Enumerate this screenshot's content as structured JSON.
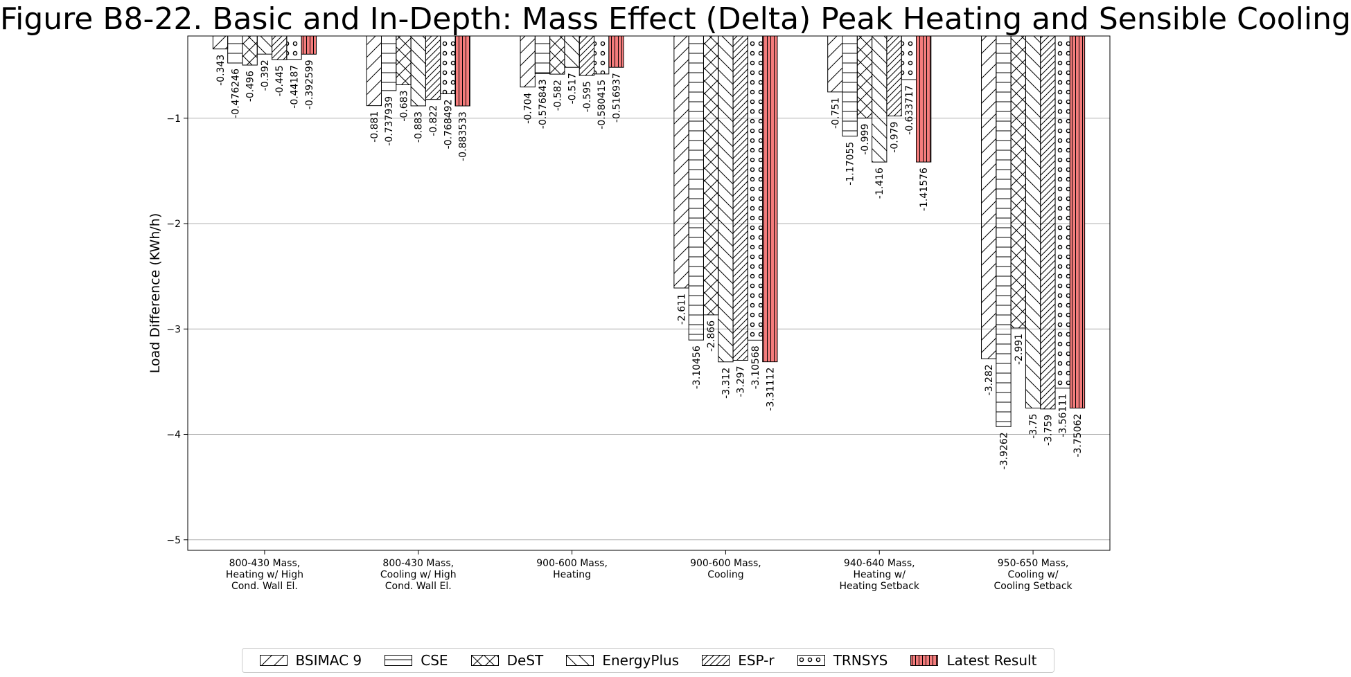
{
  "chart_data": {
    "type": "bar",
    "title": "Figure B8-22. Basic and In-Depth: Mass Effect (Delta) Peak Heating and Sensible Cooling",
    "ylabel": "Load Difference (KWh/h)",
    "xlabel": "",
    "ylim": [
      -5.1,
      -0.22
    ],
    "yticks": [
      -1,
      -2,
      -3,
      -4,
      -5
    ],
    "ytick_labels": [
      "−1",
      "−2",
      "−3",
      "−4",
      "−5"
    ],
    "grid": "horizontal",
    "legend_position": "bottom",
    "categories": [
      [
        "800-430 Mass,",
        "Heating w/ High",
        "Cond. Wall El."
      ],
      [
        "800-430 Mass,",
        "Cooling w/ High",
        "Cond. Wall El."
      ],
      [
        "900-600 Mass,",
        "Heating"
      ],
      [
        "900-600 Mass,",
        "Cooling"
      ],
      [
        "940-640 Mass,",
        "Heating w/",
        "Heating Setback"
      ],
      [
        "950-650 Mass,",
        "Cooling w/",
        "Cooling Setback"
      ]
    ],
    "series": [
      {
        "name": "BSIMAC 9",
        "pattern": "slash",
        "color": "#ffffff",
        "values": [
          -0.343,
          -0.881,
          -0.704,
          -2.611,
          -0.751,
          -3.282
        ],
        "labels": [
          "-0.343",
          "-0.881",
          "-0.704",
          "-2.611",
          "-0.751",
          "-3.282"
        ]
      },
      {
        "name": "CSE",
        "pattern": "horizontal",
        "color": "#ffffff",
        "values": [
          -0.476246,
          -0.737939,
          -0.576843,
          -3.10456,
          -1.17055,
          -3.9262
        ],
        "labels": [
          "-0.476246",
          "-0.737939",
          "-0.576843",
          "-3.10456",
          "-1.17055",
          "-3.9262"
        ]
      },
      {
        "name": "DeST",
        "pattern": "cross",
        "color": "#ffffff",
        "values": [
          -0.496,
          -0.683,
          -0.582,
          -2.866,
          -0.999,
          -2.991
        ],
        "labels": [
          "-0.496",
          "-0.683",
          "-0.582",
          "-2.866",
          "-0.999",
          "-2.991"
        ]
      },
      {
        "name": "EnergyPlus",
        "pattern": "backslash",
        "color": "#ffffff",
        "values": [
          -0.392,
          -0.883,
          -0.517,
          -3.312,
          -1.416,
          -3.75
        ],
        "labels": [
          "-0.392",
          "-0.883",
          "-0.517",
          "-3.312",
          "-1.416",
          "-3.75"
        ]
      },
      {
        "name": "ESP-r",
        "pattern": "dense-slash",
        "color": "#ffffff",
        "values": [
          -0.445,
          -0.822,
          -0.595,
          -3.297,
          -0.979,
          -3.759
        ],
        "labels": [
          "-0.445",
          "-0.822",
          "-0.595",
          "-3.297",
          "-0.979",
          "-3.759"
        ]
      },
      {
        "name": "TRNSYS",
        "pattern": "circles",
        "color": "#ffffff",
        "values": [
          -0.44187,
          -0.768492,
          -0.580415,
          -3.10568,
          -0.633717,
          -3.56111
        ],
        "labels": [
          "-0.44187",
          "-0.768492",
          "-0.580415",
          "-3.10568",
          "-0.633717",
          "-3.56111"
        ]
      },
      {
        "name": "Latest Result",
        "pattern": "vertical",
        "color": "#f47c7c",
        "values": [
          -0.392599,
          -0.883533,
          -0.516937,
          -3.31112,
          -1.41576,
          -3.75062
        ],
        "labels": [
          "-0.392599",
          "-0.883533",
          "-0.516937",
          "-3.31112",
          "-1.41576",
          "-3.75062"
        ]
      }
    ]
  }
}
